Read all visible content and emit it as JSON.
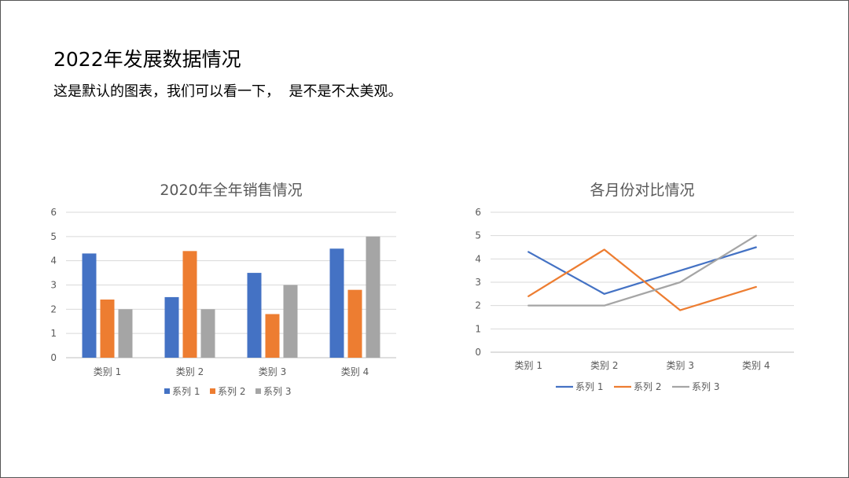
{
  "slide": {
    "title": "2022年发展数据情况",
    "subtitle": "这是默认的图表，我们可以看一下，  是不是不太美观。"
  },
  "chart_data": [
    {
      "type": "bar",
      "title": "2020年全年销售情况",
      "categories": [
        "类别 1",
        "类别 2",
        "类别 3",
        "类别 4"
      ],
      "series": [
        {
          "name": "系列 1",
          "values": [
            4.3,
            2.5,
            3.5,
            4.5
          ],
          "color": "#4472C4"
        },
        {
          "name": "系列 2",
          "values": [
            2.4,
            4.4,
            1.8,
            2.8
          ],
          "color": "#ED7D31"
        },
        {
          "name": "系列 3",
          "values": [
            2,
            2,
            3,
            5
          ],
          "color": "#A5A5A5"
        }
      ],
      "ylim": [
        0,
        6
      ],
      "yticks": [
        "0",
        "1",
        "2",
        "3",
        "4",
        "5",
        "6"
      ],
      "grid": true,
      "legend": "bottom"
    },
    {
      "type": "line",
      "title": "各月份对比情况",
      "categories": [
        "类别 1",
        "类别 2",
        "类别 3",
        "类别 4"
      ],
      "series": [
        {
          "name": "系列 1",
          "values": [
            4.3,
            2.5,
            3.5,
            4.5
          ],
          "color": "#4472C4"
        },
        {
          "name": "系列 2",
          "values": [
            2.4,
            4.4,
            1.8,
            2.8
          ],
          "color": "#ED7D31"
        },
        {
          "name": "系列 3",
          "values": [
            2,
            2,
            3,
            5
          ],
          "color": "#A5A5A5"
        }
      ],
      "ylim": [
        0,
        6
      ],
      "yticks": [
        "0",
        "1",
        "2",
        "3",
        "4",
        "5",
        "6"
      ],
      "grid": true,
      "legend": "bottom"
    }
  ]
}
